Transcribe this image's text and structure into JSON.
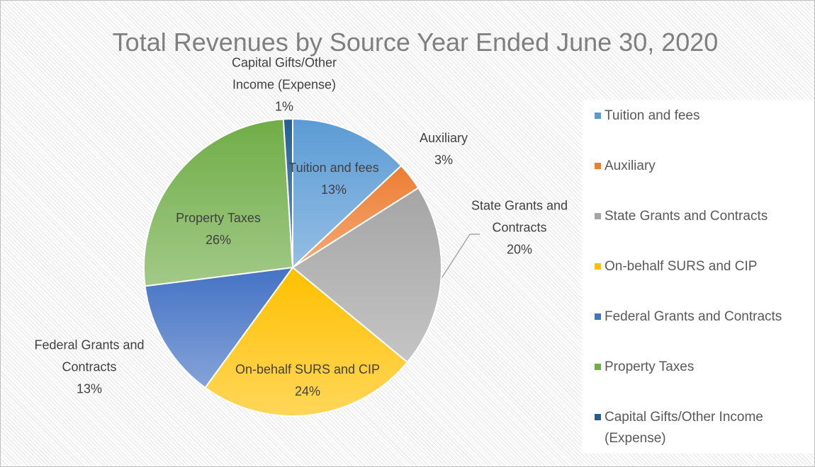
{
  "chart_data": {
    "type": "pie",
    "title": "Total Revenues by Source Year Ended June 30, 2020",
    "categories": [
      "Tuition and fees",
      "Auxiliary",
      "State Grants and Contracts",
      "On-behalf SURS and CIP",
      "Federal Grants and Contracts",
      "Property Taxes",
      "Capital Gifts/Other Income (Expense)"
    ],
    "values": [
      13,
      3,
      20,
      24,
      13,
      26,
      1
    ],
    "value_labels": [
      "13%",
      "3%",
      "20%",
      "24%",
      "13%",
      "26%",
      "1%"
    ],
    "colors": [
      "#5b9bd5",
      "#ed7d31",
      "#a5a5a5",
      "#ffc000",
      "#4472c4",
      "#70ad47",
      "#255e91"
    ],
    "legend": "right"
  }
}
